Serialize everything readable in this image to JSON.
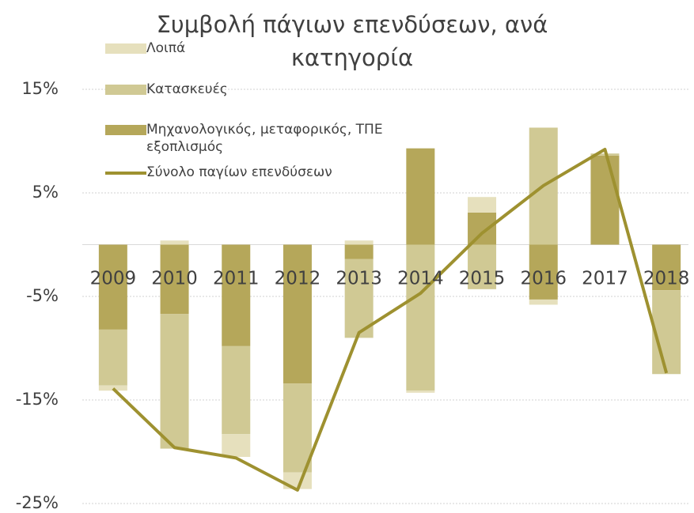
{
  "chart_data": {
    "type": "bar",
    "title": "Συμβολή πάγιων επενδύσεων, ανά κατηγορία",
    "categories": [
      "2009",
      "2010",
      "2011",
      "2012",
      "2013",
      "2014",
      "2015",
      "2016",
      "2017",
      "2018"
    ],
    "series": [
      {
        "name": "Μηχανολογικός, μεταφορικός, ΤΠΕ εξοπλισμός",
        "color": "#b5a75a",
        "values": [
          -8.2,
          -6.7,
          -9.8,
          -13.4,
          -1.4,
          9.3,
          3.1,
          -5.3,
          8.6,
          -4.4
        ]
      },
      {
        "name": "Κατασκευές",
        "color": "#d0c994",
        "values": [
          -5.4,
          -13.0,
          -8.5,
          -8.6,
          -7.6,
          -14.1,
          -4.3,
          11.3,
          0.2,
          -8.1
        ]
      },
      {
        "name": "Λοιπά",
        "color": "#e6e0bd",
        "values": [
          -0.5,
          0.4,
          -2.2,
          -1.6,
          0.4,
          -0.2,
          1.5,
          -0.5,
          0,
          0
        ]
      },
      {
        "name": "Σύνολο παγίων επενδύσεων",
        "type": "line",
        "color": "#9e9130",
        "values": [
          -13.9,
          -19.6,
          -20.6,
          -23.7,
          -8.5,
          -4.7,
          1.1,
          5.7,
          9.2,
          -12.4
        ]
      }
    ],
    "ylim": [
      -25,
      15
    ],
    "yticks": [
      {
        "value": -25,
        "label": "-25%"
      },
      {
        "value": -15,
        "label": "-15%"
      },
      {
        "value": -5,
        "label": "-5%"
      },
      {
        "value": 5,
        "label": "5%"
      },
      {
        "value": 15,
        "label": "15%"
      }
    ],
    "grid": true
  }
}
